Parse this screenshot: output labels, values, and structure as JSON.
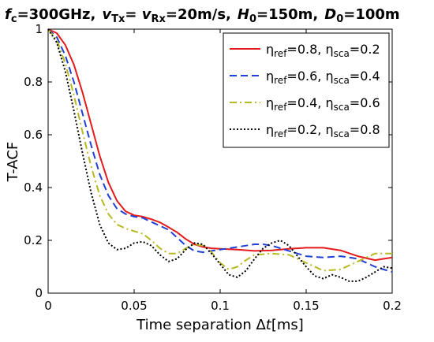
{
  "chart_data": {
    "type": "line",
    "title_parts": {
      "fc": "f",
      "fc_sub": "c",
      "fc_val": "=300GHz,",
      "v": "v",
      "vtx_sub": "Tx",
      "eq": "= ",
      "vrx_sub": "Rx",
      "v_val": "=20m/s,",
      "H": "H",
      "H_sub": "0",
      "H_val": "=150m,",
      "D": "D",
      "D_sub": "0",
      "D_val": "=100m"
    },
    "ylabel": "T-ACF",
    "xlabel_parts": {
      "text": "Time separation Δ",
      "italic": "t",
      "unit": "[ms]"
    },
    "xlim": [
      0,
      0.2
    ],
    "ylim": [
      0,
      1
    ],
    "xticks": [
      "0",
      "0.05",
      "0.1",
      "0.15",
      "0.2"
    ],
    "yticks": [
      "0",
      "0.2",
      "0.4",
      "0.6",
      "0.8",
      "1"
    ],
    "legend_position": "top-right",
    "grid": false,
    "series": [
      {
        "name": "ηref=0.8, ηsca=0.2",
        "legend": {
          "eta1": "η",
          "sub1": "ref",
          "v1": "=0.8, ",
          "eta2": "η",
          "sub2": "sca",
          "v2": "=0.2"
        },
        "color": "#e41a1c",
        "style": "solid",
        "points": [
          [
            0,
            1
          ],
          [
            0.005,
            0.985
          ],
          [
            0.01,
            0.94
          ],
          [
            0.015,
            0.865
          ],
          [
            0.02,
            0.76
          ],
          [
            0.025,
            0.64
          ],
          [
            0.03,
            0.52
          ],
          [
            0.035,
            0.42
          ],
          [
            0.04,
            0.35
          ],
          [
            0.045,
            0.31
          ],
          [
            0.05,
            0.295
          ],
          [
            0.055,
            0.29
          ],
          [
            0.06,
            0.28
          ],
          [
            0.065,
            0.268
          ],
          [
            0.07,
            0.25
          ],
          [
            0.075,
            0.23
          ],
          [
            0.08,
            0.205
          ],
          [
            0.085,
            0.185
          ],
          [
            0.09,
            0.175
          ],
          [
            0.095,
            0.17
          ],
          [
            0.1,
            0.168
          ],
          [
            0.11,
            0.165
          ],
          [
            0.12,
            0.16
          ],
          [
            0.13,
            0.162
          ],
          [
            0.14,
            0.168
          ],
          [
            0.15,
            0.172
          ],
          [
            0.16,
            0.172
          ],
          [
            0.17,
            0.162
          ],
          [
            0.18,
            0.14
          ],
          [
            0.19,
            0.125
          ],
          [
            0.2,
            0.135
          ]
        ]
      },
      {
        "name": "ηref=0.6, ηsca=0.4",
        "legend": {
          "eta1": "η",
          "sub1": "ref",
          "v1": "=0.6, ",
          "eta2": "η",
          "sub2": "sca",
          "v2": "=0.4"
        },
        "color": "#1f3fd9",
        "style": "dashed",
        "points": [
          [
            0,
            1
          ],
          [
            0.005,
            0.97
          ],
          [
            0.01,
            0.9
          ],
          [
            0.015,
            0.8
          ],
          [
            0.02,
            0.68
          ],
          [
            0.025,
            0.56
          ],
          [
            0.03,
            0.45
          ],
          [
            0.035,
            0.37
          ],
          [
            0.04,
            0.32
          ],
          [
            0.045,
            0.3
          ],
          [
            0.05,
            0.29
          ],
          [
            0.055,
            0.285
          ],
          [
            0.06,
            0.27
          ],
          [
            0.065,
            0.255
          ],
          [
            0.07,
            0.24
          ],
          [
            0.075,
            0.21
          ],
          [
            0.08,
            0.18
          ],
          [
            0.085,
            0.16
          ],
          [
            0.09,
            0.155
          ],
          [
            0.095,
            0.16
          ],
          [
            0.1,
            0.165
          ],
          [
            0.11,
            0.175
          ],
          [
            0.12,
            0.185
          ],
          [
            0.125,
            0.185
          ],
          [
            0.13,
            0.18
          ],
          [
            0.14,
            0.16
          ],
          [
            0.15,
            0.14
          ],
          [
            0.16,
            0.135
          ],
          [
            0.17,
            0.14
          ],
          [
            0.18,
            0.13
          ],
          [
            0.19,
            0.1
          ],
          [
            0.2,
            0.08
          ]
        ]
      },
      {
        "name": "ηref=0.4, ηsca=0.6",
        "legend": {
          "eta1": "η",
          "sub1": "ref",
          "v1": "=0.4, ",
          "eta2": "η",
          "sub2": "sca",
          "v2": "=0.6"
        },
        "color": "#b8b820",
        "style": "dashdot",
        "points": [
          [
            0,
            1
          ],
          [
            0.005,
            0.96
          ],
          [
            0.01,
            0.87
          ],
          [
            0.015,
            0.75
          ],
          [
            0.02,
            0.61
          ],
          [
            0.025,
            0.48
          ],
          [
            0.03,
            0.37
          ],
          [
            0.035,
            0.3
          ],
          [
            0.04,
            0.26
          ],
          [
            0.045,
            0.245
          ],
          [
            0.05,
            0.235
          ],
          [
            0.055,
            0.225
          ],
          [
            0.06,
            0.2
          ],
          [
            0.065,
            0.17
          ],
          [
            0.07,
            0.15
          ],
          [
            0.075,
            0.15
          ],
          [
            0.08,
            0.17
          ],
          [
            0.085,
            0.185
          ],
          [
            0.09,
            0.18
          ],
          [
            0.095,
            0.155
          ],
          [
            0.1,
            0.115
          ],
          [
            0.105,
            0.09
          ],
          [
            0.11,
            0.1
          ],
          [
            0.115,
            0.125
          ],
          [
            0.12,
            0.145
          ],
          [
            0.13,
            0.15
          ],
          [
            0.14,
            0.145
          ],
          [
            0.15,
            0.115
          ],
          [
            0.16,
            0.085
          ],
          [
            0.17,
            0.09
          ],
          [
            0.18,
            0.12
          ],
          [
            0.19,
            0.15
          ],
          [
            0.2,
            0.15
          ]
        ]
      },
      {
        "name": "ηref=0.2, ηsca=0.8",
        "legend": {
          "eta1": "η",
          "sub1": "ref",
          "v1": "=0.2, ",
          "eta2": "η",
          "sub2": "sca",
          "v2": "=0.8"
        },
        "color": "#000000",
        "style": "dotted",
        "points": [
          [
            0,
            1
          ],
          [
            0.005,
            0.95
          ],
          [
            0.01,
            0.84
          ],
          [
            0.015,
            0.69
          ],
          [
            0.02,
            0.53
          ],
          [
            0.025,
            0.38
          ],
          [
            0.03,
            0.26
          ],
          [
            0.035,
            0.19
          ],
          [
            0.04,
            0.165
          ],
          [
            0.045,
            0.17
          ],
          [
            0.05,
            0.19
          ],
          [
            0.055,
            0.195
          ],
          [
            0.06,
            0.18
          ],
          [
            0.065,
            0.145
          ],
          [
            0.07,
            0.12
          ],
          [
            0.075,
            0.13
          ],
          [
            0.08,
            0.165
          ],
          [
            0.085,
            0.19
          ],
          [
            0.09,
            0.185
          ],
          [
            0.095,
            0.15
          ],
          [
            0.1,
            0.11
          ],
          [
            0.105,
            0.07
          ],
          [
            0.11,
            0.06
          ],
          [
            0.115,
            0.085
          ],
          [
            0.12,
            0.13
          ],
          [
            0.125,
            0.17
          ],
          [
            0.13,
            0.19
          ],
          [
            0.135,
            0.2
          ],
          [
            0.14,
            0.18
          ],
          [
            0.145,
            0.14
          ],
          [
            0.15,
            0.1
          ],
          [
            0.155,
            0.065
          ],
          [
            0.16,
            0.055
          ],
          [
            0.165,
            0.07
          ],
          [
            0.17,
            0.06
          ],
          [
            0.175,
            0.045
          ],
          [
            0.18,
            0.045
          ],
          [
            0.185,
            0.06
          ],
          [
            0.19,
            0.08
          ],
          [
            0.195,
            0.1
          ],
          [
            0.2,
            0.095
          ]
        ]
      }
    ]
  }
}
